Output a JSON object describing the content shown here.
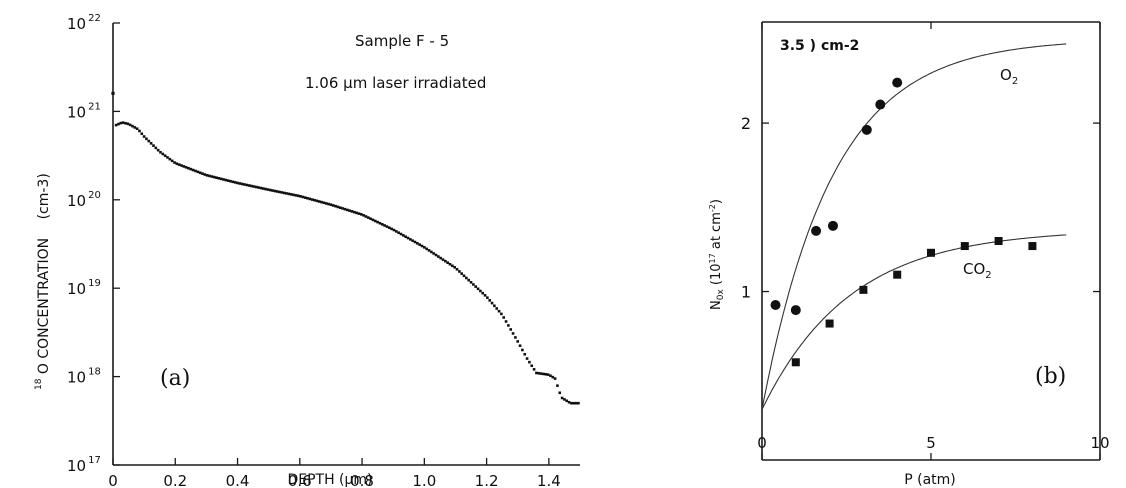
{
  "chart_data": [
    {
      "panel": "(a)",
      "type": "scatter",
      "annotation_line1": "Sample   F - 5",
      "annotation_line2": "1.06 μm   laser irradiated",
      "xlabel": "DEPTH (μm)",
      "ylabel_prefix": "18",
      "ylabel_main": "O  CONCENTRATION",
      "ylabel_unit": "(cm-3)",
      "yscale": "log",
      "xlim": [
        0,
        1.5
      ],
      "ylim": [
        1e+17,
        1e+22
      ],
      "xticks": [
        "0",
        "0.2",
        "0.4",
        "0.6",
        "0.8",
        "1.0",
        "1.2",
        "1.4"
      ],
      "yticks": [
        "17",
        "18",
        "19",
        "20",
        "21",
        "22"
      ],
      "ytick_base": "10",
      "profile": [
        [
          0.0,
          1.6e+21
        ],
        [
          0.01,
          7e+20
        ],
        [
          0.03,
          7.5e+20
        ],
        [
          0.05,
          7.2e+20
        ],
        [
          0.08,
          6.3e+20
        ],
        [
          0.1,
          5.2e+20
        ],
        [
          0.15,
          3.5e+20
        ],
        [
          0.2,
          2.6e+20
        ],
        [
          0.3,
          1.9e+20
        ],
        [
          0.4,
          1.55e+20
        ],
        [
          0.5,
          1.3e+20
        ],
        [
          0.6,
          1.1e+20
        ],
        [
          0.7,
          8.8e+19
        ],
        [
          0.8,
          6.8e+19
        ],
        [
          0.9,
          4.6e+19
        ],
        [
          1.0,
          2.9e+19
        ],
        [
          1.1,
          1.7e+19
        ],
        [
          1.2,
          8e+18
        ],
        [
          1.25,
          5e+18
        ],
        [
          1.3,
          2.5e+18
        ],
        [
          1.33,
          1.6e+18
        ],
        [
          1.36,
          1.1e+18
        ],
        [
          1.4,
          1.05e+18
        ],
        [
          1.42,
          9.5e+17
        ],
        [
          1.44,
          5.8e+17
        ],
        [
          1.47,
          5e+17
        ],
        [
          1.5,
          5e+17
        ]
      ],
      "leading_point": [
        0.0,
        1.6e+21
      ]
    },
    {
      "panel": "(b)",
      "type": "scatter",
      "annotation": "3.5 ) cm-2",
      "xlabel": "P (atm)",
      "ylabel": "N0x (10^17 at cm^-2)",
      "ylabel_main": "N",
      "ylabel_sub": "0x",
      "ylabel_rest": " (10",
      "ylabel_sup": "17",
      "ylabel_rest2": " at cm",
      "ylabel_sup2": "-2",
      "ylabel_end": ")",
      "xlim": [
        0,
        10
      ],
      "ylim": [
        0,
        2.6
      ],
      "xticks": [
        "0",
        "5",
        "10"
      ],
      "yticks": [
        "1",
        "2"
      ],
      "series": [
        {
          "name": "O2",
          "label_main": "O",
          "label_sub": "2",
          "marker": "circle",
          "x": [
            0.4,
            1.0,
            1.6,
            2.1,
            3.1,
            3.5,
            4.0
          ],
          "y": [
            0.92,
            0.89,
            1.36,
            1.39,
            1.96,
            2.11,
            2.24
          ],
          "fit_label_at": [
            5.0,
            2.2
          ]
        },
        {
          "name": "CO2",
          "label_main": "CO",
          "label_sub": "2",
          "marker": "square",
          "x": [
            1.0,
            2.0,
            3.0,
            4.0,
            5.0,
            6.0,
            7.0,
            8.0
          ],
          "y": [
            0.58,
            0.81,
            1.01,
            1.1,
            1.23,
            1.27,
            1.3,
            1.27
          ],
          "fit_label_at": [
            5.5,
            1.1
          ]
        }
      ]
    }
  ]
}
